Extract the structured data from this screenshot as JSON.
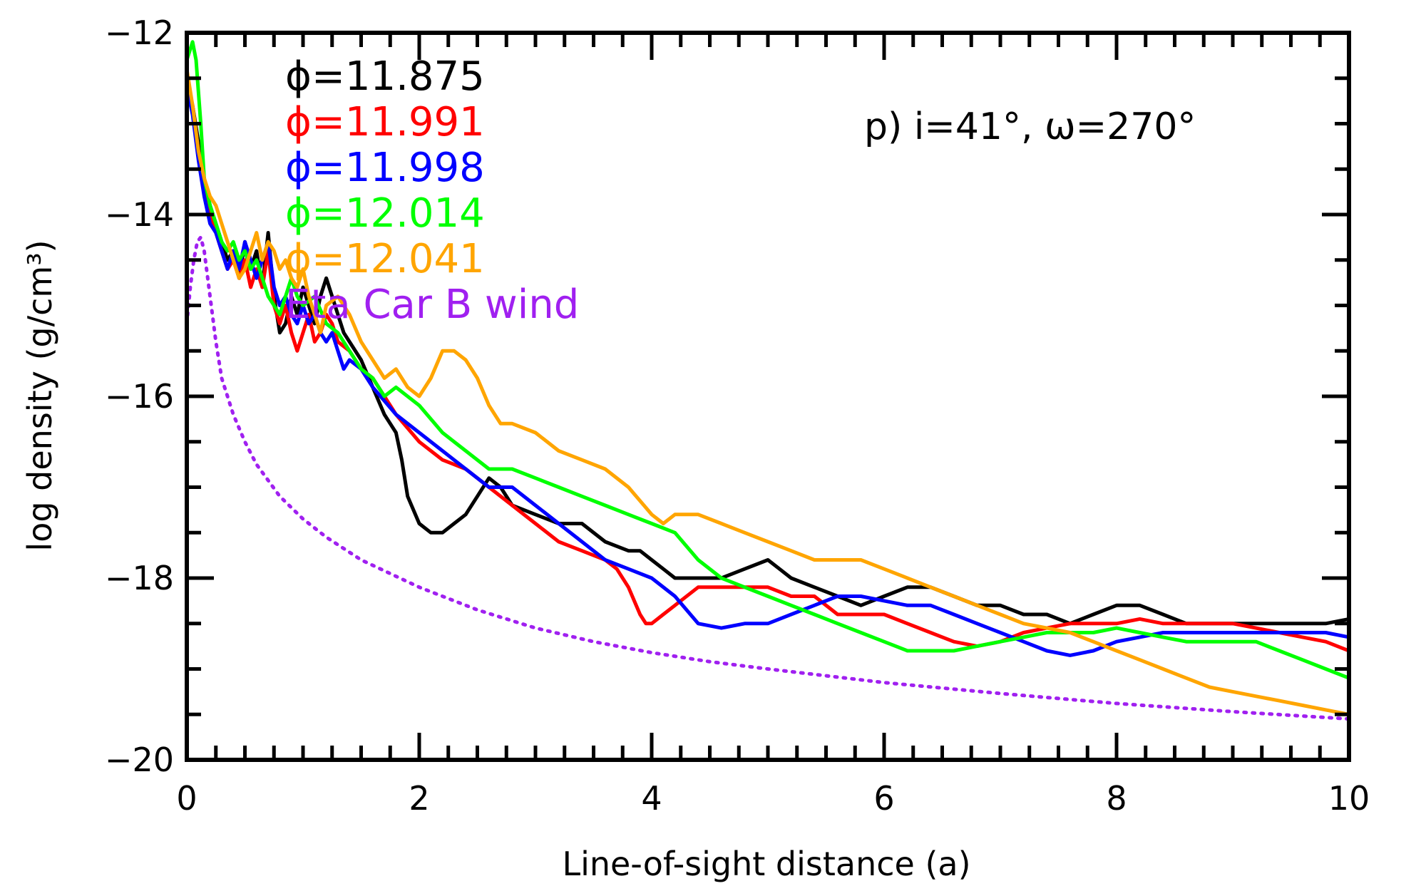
{
  "chart_data": {
    "type": "line",
    "xlabel": "Line-of-sight distance (a)",
    "ylabel": "log density (g/cm³)",
    "xlim": [
      0,
      10
    ],
    "ylim": [
      -20,
      -12
    ],
    "xticks": [
      0,
      2,
      4,
      6,
      8,
      10
    ],
    "yticks": [
      -20,
      -18,
      -16,
      -14,
      -12
    ],
    "x_tick_labels": [
      "0",
      "2",
      "4",
      "6",
      "8",
      "10"
    ],
    "y_tick_labels": [
      "−20",
      "−18",
      "−16",
      "−14",
      "−12"
    ],
    "panel_label": "p) i=41°, ω=270°",
    "grid": false,
    "legend_position": "top-left",
    "series": [
      {
        "name": "ϕ=11.875",
        "color": "#000000",
        "style": "solid",
        "x": [
          0.0,
          0.05,
          0.1,
          0.15,
          0.2,
          0.25,
          0.3,
          0.35,
          0.4,
          0.45,
          0.5,
          0.55,
          0.6,
          0.65,
          0.7,
          0.75,
          0.8,
          0.85,
          0.9,
          0.95,
          1.0,
          1.05,
          1.1,
          1.15,
          1.2,
          1.25,
          1.3,
          1.35,
          1.4,
          1.5,
          1.6,
          1.7,
          1.75,
          1.8,
          1.85,
          1.9,
          2.0,
          2.1,
          2.2,
          2.3,
          2.4,
          2.5,
          2.6,
          2.7,
          2.8,
          3.0,
          3.2,
          3.4,
          3.6,
          3.8,
          3.9,
          4.0,
          4.1,
          4.2,
          4.4,
          4.6,
          4.8,
          5.0,
          5.1,
          5.2,
          5.4,
          5.6,
          5.8,
          6.0,
          6.2,
          6.4,
          6.6,
          6.8,
          7.0,
          7.2,
          7.4,
          7.6,
          7.8,
          8.0,
          8.1,
          8.2,
          8.4,
          8.6,
          8.8,
          9.0,
          9.2,
          9.4,
          9.6,
          9.8,
          10.0
        ],
        "y": [
          -12.5,
          -12.8,
          -13.2,
          -13.6,
          -13.9,
          -14.1,
          -14.3,
          -14.5,
          -14.4,
          -14.7,
          -14.3,
          -14.6,
          -14.4,
          -14.8,
          -14.2,
          -14.9,
          -15.3,
          -15.2,
          -14.9,
          -15.1,
          -14.8,
          -15.0,
          -15.2,
          -14.9,
          -14.7,
          -14.9,
          -15.1,
          -15.3,
          -15.4,
          -15.6,
          -15.9,
          -16.2,
          -16.3,
          -16.4,
          -16.7,
          -17.1,
          -17.4,
          -17.5,
          -17.5,
          -17.4,
          -17.3,
          -17.1,
          -16.9,
          -17.0,
          -17.2,
          -17.3,
          -17.4,
          -17.4,
          -17.6,
          -17.7,
          -17.7,
          -17.8,
          -17.9,
          -18.0,
          -18.0,
          -18.0,
          -17.9,
          -17.8,
          -17.9,
          -18.0,
          -18.1,
          -18.2,
          -18.3,
          -18.2,
          -18.1,
          -18.1,
          -18.2,
          -18.3,
          -18.3,
          -18.4,
          -18.4,
          -18.5,
          -18.4,
          -18.3,
          -18.3,
          -18.3,
          -18.4,
          -18.5,
          -18.5,
          -18.5,
          -18.5,
          -18.5,
          -18.5,
          -18.5,
          -18.45
        ]
      },
      {
        "name": "ϕ=11.991",
        "color": "#ff0000",
        "style": "solid",
        "x": [
          0.0,
          0.05,
          0.1,
          0.15,
          0.2,
          0.25,
          0.3,
          0.35,
          0.4,
          0.45,
          0.5,
          0.55,
          0.6,
          0.65,
          0.7,
          0.75,
          0.8,
          0.85,
          0.9,
          0.95,
          1.0,
          1.05,
          1.1,
          1.15,
          1.2,
          1.25,
          1.3,
          1.4,
          1.5,
          1.6,
          1.7,
          1.8,
          2.0,
          2.2,
          2.4,
          2.6,
          2.8,
          3.0,
          3.2,
          3.4,
          3.6,
          3.7,
          3.8,
          3.9,
          3.95,
          4.0,
          4.1,
          4.2,
          4.4,
          4.6,
          4.8,
          5.0,
          5.2,
          5.4,
          5.6,
          5.8,
          6.0,
          6.2,
          6.4,
          6.6,
          6.8,
          7.0,
          7.2,
          7.4,
          7.6,
          7.8,
          8.0,
          8.2,
          8.4,
          8.6,
          8.8,
          9.0,
          9.2,
          9.4,
          9.6,
          9.8,
          10.0
        ],
        "y": [
          -12.6,
          -12.8,
          -13.3,
          -13.7,
          -14.0,
          -14.2,
          -14.4,
          -14.6,
          -14.5,
          -14.7,
          -14.5,
          -14.8,
          -14.6,
          -14.8,
          -14.4,
          -15.0,
          -15.2,
          -15.0,
          -15.3,
          -15.5,
          -15.3,
          -15.1,
          -15.4,
          -15.3,
          -15.1,
          -15.2,
          -15.4,
          -15.5,
          -15.7,
          -15.8,
          -16.0,
          -16.2,
          -16.5,
          -16.7,
          -16.8,
          -17.0,
          -17.2,
          -17.4,
          -17.6,
          -17.7,
          -17.8,
          -17.9,
          -18.1,
          -18.4,
          -18.5,
          -18.5,
          -18.4,
          -18.3,
          -18.1,
          -18.1,
          -18.1,
          -18.1,
          -18.2,
          -18.2,
          -18.4,
          -18.4,
          -18.4,
          -18.5,
          -18.6,
          -18.7,
          -18.75,
          -18.7,
          -18.6,
          -18.55,
          -18.5,
          -18.5,
          -18.5,
          -18.45,
          -18.5,
          -18.5,
          -18.5,
          -18.5,
          -18.55,
          -18.6,
          -18.65,
          -18.7,
          -18.8
        ]
      },
      {
        "name": "ϕ=11.998",
        "color": "#0000ff",
        "style": "solid",
        "x": [
          0.0,
          0.05,
          0.1,
          0.15,
          0.2,
          0.25,
          0.3,
          0.35,
          0.4,
          0.45,
          0.5,
          0.55,
          0.6,
          0.65,
          0.7,
          0.75,
          0.8,
          0.85,
          0.9,
          0.95,
          1.0,
          1.05,
          1.1,
          1.15,
          1.2,
          1.25,
          1.3,
          1.35,
          1.4,
          1.5,
          1.6,
          1.8,
          2.0,
          2.2,
          2.4,
          2.6,
          2.8,
          3.0,
          3.2,
          3.4,
          3.6,
          3.8,
          4.0,
          4.2,
          4.4,
          4.6,
          4.8,
          5.0,
          5.2,
          5.4,
          5.6,
          5.8,
          6.0,
          6.2,
          6.4,
          6.6,
          6.8,
          7.0,
          7.2,
          7.4,
          7.6,
          7.8,
          8.0,
          8.2,
          8.4,
          8.6,
          8.8,
          9.0,
          9.2,
          9.4,
          9.6,
          9.8,
          10.0
        ],
        "y": [
          -12.6,
          -12.9,
          -13.4,
          -13.8,
          -14.1,
          -14.2,
          -14.4,
          -14.6,
          -14.4,
          -14.6,
          -14.3,
          -14.5,
          -14.7,
          -14.5,
          -14.3,
          -14.8,
          -15.0,
          -14.9,
          -15.1,
          -15.2,
          -15.0,
          -15.2,
          -15.1,
          -15.3,
          -15.4,
          -15.3,
          -15.5,
          -15.7,
          -15.6,
          -15.7,
          -15.9,
          -16.2,
          -16.4,
          -16.6,
          -16.8,
          -17.0,
          -17.0,
          -17.2,
          -17.4,
          -17.6,
          -17.8,
          -17.9,
          -18.0,
          -18.2,
          -18.5,
          -18.55,
          -18.5,
          -18.5,
          -18.4,
          -18.3,
          -18.2,
          -18.2,
          -18.25,
          -18.3,
          -18.3,
          -18.4,
          -18.5,
          -18.6,
          -18.7,
          -18.8,
          -18.85,
          -18.8,
          -18.7,
          -18.65,
          -18.6,
          -18.6,
          -18.6,
          -18.6,
          -18.6,
          -18.6,
          -18.6,
          -18.6,
          -18.65
        ]
      },
      {
        "name": "ϕ=12.014",
        "color": "#00ff00",
        "style": "solid",
        "x": [
          0.0,
          0.05,
          0.08,
          0.12,
          0.15,
          0.2,
          0.25,
          0.3,
          0.35,
          0.4,
          0.45,
          0.5,
          0.55,
          0.6,
          0.65,
          0.7,
          0.75,
          0.8,
          0.85,
          0.9,
          0.95,
          1.0,
          1.1,
          1.2,
          1.3,
          1.4,
          1.5,
          1.6,
          1.7,
          1.8,
          2.0,
          2.2,
          2.4,
          2.6,
          2.8,
          3.0,
          3.2,
          3.4,
          3.6,
          3.8,
          4.0,
          4.2,
          4.4,
          4.6,
          4.8,
          5.0,
          5.2,
          5.4,
          5.6,
          5.8,
          6.0,
          6.2,
          6.4,
          6.6,
          6.8,
          7.0,
          7.2,
          7.4,
          7.6,
          7.8,
          8.0,
          8.2,
          8.4,
          8.6,
          8.8,
          9.0,
          9.2,
          9.4,
          9.6,
          9.8,
          10.0
        ],
        "y": [
          -12.3,
          -12.1,
          -12.3,
          -13.0,
          -13.6,
          -13.9,
          -14.1,
          -14.3,
          -14.4,
          -14.3,
          -14.5,
          -14.4,
          -14.6,
          -14.5,
          -14.7,
          -14.9,
          -15.0,
          -15.1,
          -14.9,
          -14.7,
          -14.9,
          -15.0,
          -14.9,
          -15.2,
          -15.3,
          -15.5,
          -15.7,
          -15.8,
          -16.0,
          -15.9,
          -16.1,
          -16.4,
          -16.6,
          -16.8,
          -16.8,
          -16.9,
          -17.0,
          -17.1,
          -17.2,
          -17.3,
          -17.4,
          -17.5,
          -17.8,
          -18.0,
          -18.1,
          -18.2,
          -18.3,
          -18.4,
          -18.5,
          -18.6,
          -18.7,
          -18.8,
          -18.8,
          -18.8,
          -18.75,
          -18.7,
          -18.65,
          -18.6,
          -18.6,
          -18.6,
          -18.55,
          -18.6,
          -18.65,
          -18.7,
          -18.7,
          -18.7,
          -18.7,
          -18.8,
          -18.9,
          -19.0,
          -19.1
        ]
      },
      {
        "name": "ϕ=12.041",
        "color": "#ffa500",
        "style": "solid",
        "x": [
          0.0,
          0.05,
          0.1,
          0.15,
          0.2,
          0.25,
          0.3,
          0.35,
          0.4,
          0.45,
          0.5,
          0.55,
          0.6,
          0.65,
          0.7,
          0.75,
          0.8,
          0.85,
          0.9,
          0.95,
          1.0,
          1.05,
          1.1,
          1.15,
          1.2,
          1.3,
          1.4,
          1.5,
          1.6,
          1.7,
          1.8,
          1.9,
          2.0,
          2.1,
          2.2,
          2.3,
          2.4,
          2.5,
          2.6,
          2.7,
          2.8,
          3.0,
          3.2,
          3.4,
          3.6,
          3.8,
          4.0,
          4.1,
          4.2,
          4.4,
          4.6,
          4.8,
          5.0,
          5.2,
          5.4,
          5.6,
          5.8,
          6.0,
          6.2,
          6.4,
          6.6,
          6.8,
          7.0,
          7.2,
          7.4,
          7.6,
          7.8,
          8.0,
          8.2,
          8.4,
          8.6,
          8.8,
          9.0,
          9.2,
          9.4,
          9.6,
          9.8,
          10.0
        ],
        "y": [
          -12.4,
          -12.8,
          -13.3,
          -13.6,
          -13.8,
          -13.9,
          -14.1,
          -14.3,
          -14.5,
          -14.7,
          -14.6,
          -14.4,
          -14.2,
          -14.5,
          -14.3,
          -14.4,
          -14.6,
          -14.5,
          -14.7,
          -14.8,
          -14.6,
          -14.9,
          -15.1,
          -15.3,
          -15.0,
          -14.9,
          -15.1,
          -15.4,
          -15.6,
          -15.8,
          -15.7,
          -15.9,
          -16.0,
          -15.8,
          -15.5,
          -15.5,
          -15.6,
          -15.8,
          -16.1,
          -16.3,
          -16.3,
          -16.4,
          -16.6,
          -16.7,
          -16.8,
          -17.0,
          -17.3,
          -17.4,
          -17.3,
          -17.3,
          -17.4,
          -17.5,
          -17.6,
          -17.7,
          -17.8,
          -17.8,
          -17.8,
          -17.9,
          -18.0,
          -18.1,
          -18.2,
          -18.3,
          -18.4,
          -18.5,
          -18.55,
          -18.6,
          -18.7,
          -18.8,
          -18.9,
          -19.0,
          -19.1,
          -19.2,
          -19.25,
          -19.3,
          -19.35,
          -19.4,
          -19.45,
          -19.5
        ]
      },
      {
        "name": "Eta Car B wind",
        "color": "#a020f0",
        "style": "dotted",
        "x": [
          0.0,
          0.03,
          0.06,
          0.09,
          0.12,
          0.15,
          0.2,
          0.25,
          0.3,
          0.4,
          0.5,
          0.6,
          0.8,
          1.0,
          1.2,
          1.5,
          2.0,
          2.5,
          3.0,
          3.5,
          4.0,
          4.5,
          5.0,
          6.0,
          7.0,
          8.0,
          9.0,
          10.0
        ],
        "y": [
          -15.2,
          -14.8,
          -14.5,
          -14.3,
          -14.25,
          -14.4,
          -14.9,
          -15.4,
          -15.8,
          -16.2,
          -16.5,
          -16.75,
          -17.1,
          -17.35,
          -17.55,
          -17.8,
          -18.1,
          -18.35,
          -18.55,
          -18.7,
          -18.82,
          -18.92,
          -19.0,
          -19.15,
          -19.27,
          -19.38,
          -19.47,
          -19.55
        ]
      }
    ]
  }
}
